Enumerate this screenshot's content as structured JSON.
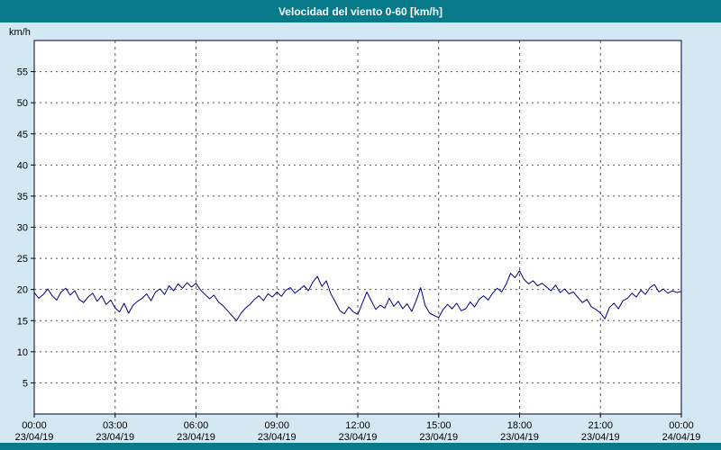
{
  "title_bar": {
    "title": "Velocidad del viento 0-60 [km/h]"
  },
  "colors": {
    "accent_teal": "#077a8a",
    "page_background": "#d4e8f3",
    "plot_background": "#ffffff",
    "plot_border": "#00002a",
    "grid": "#555555",
    "line": "#000080",
    "tick_text": "#000000"
  },
  "chart_data": {
    "type": "line",
    "title": "Velocidad del viento 0-60 [km/h]",
    "xlabel": "",
    "ylabel": "km/h",
    "ylim": [
      0,
      60
    ],
    "xlim_hours": [
      0,
      24
    ],
    "grid": "dashed",
    "legend_position": "none",
    "y_ticks": [
      5,
      10,
      15,
      20,
      25,
      30,
      35,
      40,
      45,
      50,
      55
    ],
    "x_ticks": [
      {
        "hour": 0,
        "time": "00:00",
        "date": "23/04/19"
      },
      {
        "hour": 3,
        "time": "03:00",
        "date": "23/04/19"
      },
      {
        "hour": 6,
        "time": "06:00",
        "date": "23/04/19"
      },
      {
        "hour": 9,
        "time": "09:00",
        "date": "23/04/19"
      },
      {
        "hour": 12,
        "time": "12:00",
        "date": "23/04/19"
      },
      {
        "hour": 15,
        "time": "15:00",
        "date": "23/04/19"
      },
      {
        "hour": 18,
        "time": "18:00",
        "date": "23/04/19"
      },
      {
        "hour": 21,
        "time": "21:00",
        "date": "23/04/19"
      },
      {
        "hour": 24,
        "time": "00:00",
        "date": "24/04/19"
      }
    ],
    "series": [
      {
        "name": "Velocidad del viento",
        "unit": "km/h",
        "color": "#000080",
        "sample_interval_minutes": 10,
        "values": [
          19.5,
          18.6,
          19.2,
          20.1,
          19.0,
          18.3,
          19.6,
          20.2,
          19.1,
          19.8,
          18.4,
          17.9,
          18.8,
          19.4,
          18.1,
          19.0,
          17.6,
          18.3,
          17.0,
          16.4,
          17.8,
          16.2,
          17.5,
          18.1,
          18.6,
          19.3,
          18.2,
          19.6,
          20.1,
          19.2,
          20.6,
          19.8,
          20.9,
          20.2,
          21.1,
          20.4,
          21.0,
          19.9,
          19.2,
          18.5,
          19.1,
          18.0,
          17.4,
          16.6,
          15.8,
          15.0,
          16.2,
          17.0,
          17.6,
          18.4,
          19.0,
          18.2,
          19.3,
          18.8,
          19.6,
          18.9,
          19.9,
          20.3,
          19.4,
          20.0,
          20.6,
          19.8,
          21.2,
          22.1,
          20.5,
          21.4,
          19.3,
          18.0,
          16.6,
          16.1,
          17.2,
          16.4,
          16.0,
          17.8,
          19.6,
          18.2,
          16.8,
          17.5,
          17.0,
          18.6,
          17.3,
          18.1,
          16.9,
          17.7,
          16.5,
          18.2,
          20.3,
          17.4,
          16.2,
          15.8,
          15.5,
          16.8,
          17.6,
          16.9,
          17.8,
          16.6,
          16.9,
          18.0,
          17.2,
          18.4,
          19.0,
          18.3,
          19.4,
          20.2,
          19.6,
          20.8,
          22.6,
          21.9,
          23.0,
          21.6,
          20.9,
          21.4,
          20.6,
          21.0,
          20.4,
          19.8,
          20.7,
          19.5,
          20.1,
          19.3,
          19.6,
          18.7,
          17.9,
          18.4,
          17.2,
          16.8,
          16.2,
          15.3,
          17.1,
          17.8,
          16.9,
          18.2,
          18.6,
          19.4,
          18.8,
          19.9,
          19.2,
          20.3,
          20.8,
          19.6,
          20.1,
          19.4,
          19.8,
          19.5,
          19.7
        ]
      }
    ]
  }
}
